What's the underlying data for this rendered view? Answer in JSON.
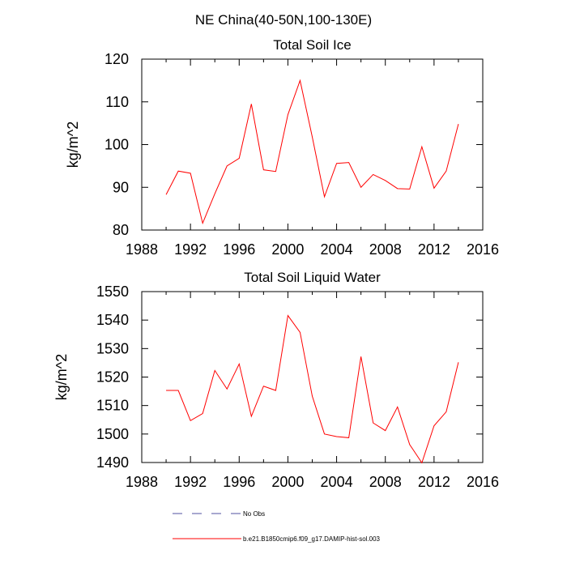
{
  "figure": {
    "suptitle": "NE China(40-50N,100-130E)"
  },
  "chart_data": [
    {
      "type": "line",
      "title": "Total Soil Ice",
      "xlabel": "",
      "ylabel": "kg/m^2",
      "xlim": [
        1988,
        2016
      ],
      "ylim": [
        80,
        120
      ],
      "xticks": [
        1988,
        1992,
        1996,
        2000,
        2004,
        2008,
        2012,
        2016
      ],
      "yticks": [
        80,
        90,
        100,
        110,
        120
      ],
      "grid": false,
      "series": [
        {
          "name": "b.e21.B1850cmip6.f09_g17.DAMIP-hist-sol.003",
          "color": "#ff0000",
          "x": [
            1990,
            1991,
            1992,
            1993,
            1994,
            1995,
            1996,
            1997,
            1998,
            1999,
            2000,
            2001,
            2002,
            2003,
            2004,
            2005,
            2006,
            2007,
            2008,
            2009,
            2010,
            2011,
            2012,
            2013,
            2014
          ],
          "y": [
            88.3,
            93.8,
            93.3,
            81.6,
            88.5,
            95.0,
            96.8,
            109.5,
            94.1,
            93.7,
            107.0,
            115.0,
            101.8,
            87.8,
            95.6,
            95.8,
            90.0,
            93.0,
            91.6,
            89.7,
            89.6,
            99.5,
            89.8,
            93.8,
            104.8
          ]
        }
      ]
    },
    {
      "type": "line",
      "title": "Total Soil Liquid Water",
      "xlabel": "",
      "ylabel": "kg/m^2",
      "xlim": [
        1988,
        2016
      ],
      "ylim": [
        1490,
        1550
      ],
      "xticks": [
        1988,
        1992,
        1996,
        2000,
        2004,
        2008,
        2012,
        2016
      ],
      "yticks": [
        1490,
        1500,
        1510,
        1520,
        1530,
        1540,
        1550
      ],
      "grid": false,
      "series": [
        {
          "name": "b.e21.B1850cmip6.f09_g17.DAMIP-hist-sol.003",
          "color": "#ff0000",
          "x": [
            1990,
            1991,
            1992,
            1993,
            1994,
            1995,
            1996,
            1997,
            1998,
            1999,
            2000,
            2001,
            2002,
            2003,
            2004,
            2005,
            2006,
            2007,
            2008,
            2009,
            2010,
            2011,
            2012,
            2013,
            2014
          ],
          "y": [
            1515.3,
            1515.3,
            1504.7,
            1507.2,
            1522.3,
            1515.8,
            1524.6,
            1506.2,
            1516.8,
            1515.3,
            1541.6,
            1535.7,
            1513.3,
            1500.0,
            1499.1,
            1498.7,
            1527.2,
            1503.9,
            1501.2,
            1509.5,
            1496.3,
            1489.9,
            1502.9,
            1507.8,
            1525.2
          ]
        }
      ]
    }
  ],
  "legend": {
    "placement": "bottom-left",
    "entries": [
      {
        "label": "No Obs",
        "color": "#5050a0",
        "style": "dashed"
      },
      {
        "label": "b.e21.B1850cmip6.f09_g17.DAMIP-hist-sol.003",
        "color": "#ff0000",
        "style": "solid"
      }
    ]
  }
}
